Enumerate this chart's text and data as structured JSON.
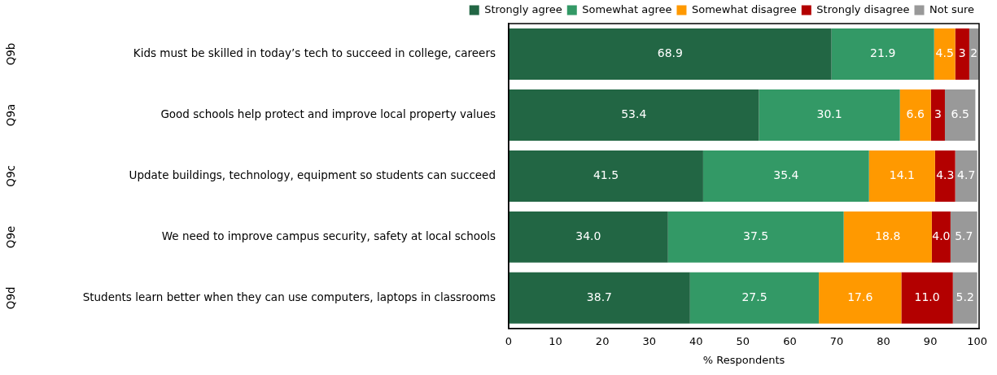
{
  "chart_data": {
    "type": "bar",
    "orientation": "horizontal",
    "stacked": true,
    "xlabel": "% Respondents",
    "categories": [
      "Kids must be skilled in today’s tech to succeed in college, careers",
      "Good schools help protect and improve local property values",
      "Update buildings, technology, equipment so students can succeed",
      "We need to improve campus security, safety at local schools",
      "Students learn better when they can use computers, laptops in classrooms"
    ],
    "annotations": [
      "Q9b",
      "Q9a",
      "Q9c",
      "Q9e",
      "Q9d"
    ],
    "series": [
      {
        "name": "Strongly agree",
        "color": "#226644",
        "values": [
          68.9,
          53.4,
          41.5,
          34.0,
          38.7
        ],
        "value_labels": [
          "68.9",
          "53.4",
          "41.5",
          "34.0",
          "38.7"
        ]
      },
      {
        "name": "Somewhat agree",
        "color": "#339966",
        "values": [
          21.9,
          30.1,
          35.4,
          37.5,
          27.5
        ],
        "value_labels": [
          "21.9",
          "30.1",
          "35.4",
          "37.5",
          "27.5"
        ]
      },
      {
        "name": "Somewhat disagree",
        "color": "#ff9900",
        "values": [
          4.5,
          6.6,
          14.1,
          18.8,
          17.6
        ],
        "value_labels": [
          "4.5",
          "6.6",
          "14.1",
          "18.8",
          "17.6"
        ]
      },
      {
        "name": "Strongly disagree",
        "color": "#b30000",
        "values": [
          3,
          3,
          4.3,
          4.0,
          11.0
        ],
        "value_labels": [
          "3",
          "3",
          "4.3",
          "4.0",
          "11.0"
        ]
      },
      {
        "name": "Not sure",
        "color": "#999999",
        "values": [
          2,
          6.5,
          4.7,
          5.7,
          5.2
        ],
        "value_labels": [
          "2",
          "6.5",
          "4.7",
          "5.7",
          "5.2"
        ]
      }
    ],
    "xlim": [
      0,
      100.4
    ],
    "xticks": [
      0,
      10,
      20,
      30,
      40,
      50,
      60,
      70,
      80,
      90,
      100
    ],
    "grid": false,
    "legend": "top right"
  }
}
